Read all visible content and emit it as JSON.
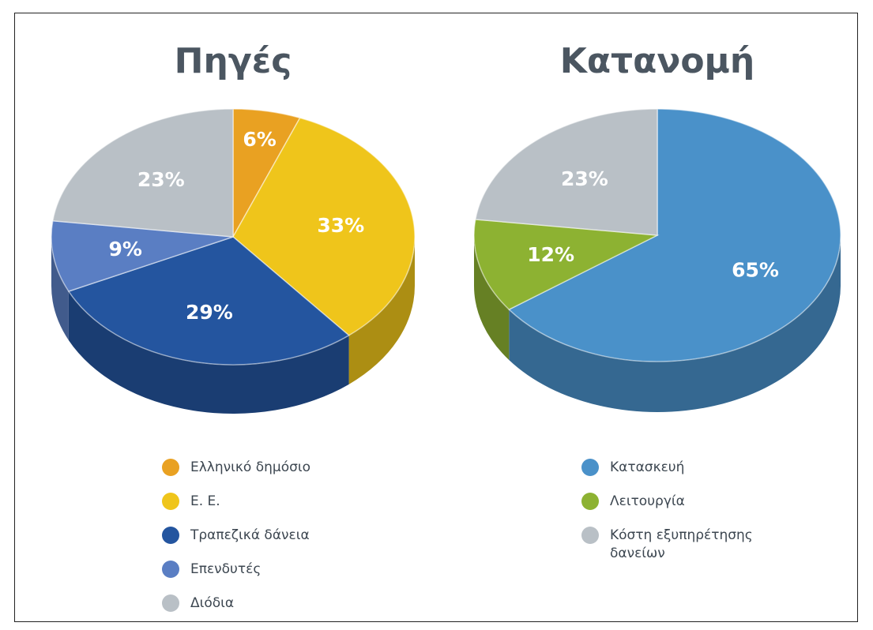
{
  "chart_data": [
    {
      "type": "pie",
      "title": "Πηγές",
      "categories": [
        "Ελληνικό δημόσιο",
        "Ε. Ε.",
        "Τραπεζικά δάνεια",
        "Επενδυτές",
        "Διόδια"
      ],
      "values": [
        6,
        33,
        29,
        9,
        23
      ],
      "value_labels": [
        "6%",
        "33%",
        "29%",
        "9%",
        "23%"
      ],
      "colors": [
        "#e9a122",
        "#efc51b",
        "#24559f",
        "#5a7ec3",
        "#b9c0c6"
      ]
    },
    {
      "type": "pie",
      "title": "Κατανομή",
      "categories": [
        "Κατασκευή",
        "Λειτουργία",
        "Κόστη εξυπηρέτησης δανείων"
      ],
      "values": [
        65,
        12,
        23
      ],
      "value_labels": [
        "65%",
        "12%",
        "23%"
      ],
      "colors": [
        "#4a91c9",
        "#8db232",
        "#b9c0c6"
      ]
    }
  ]
}
